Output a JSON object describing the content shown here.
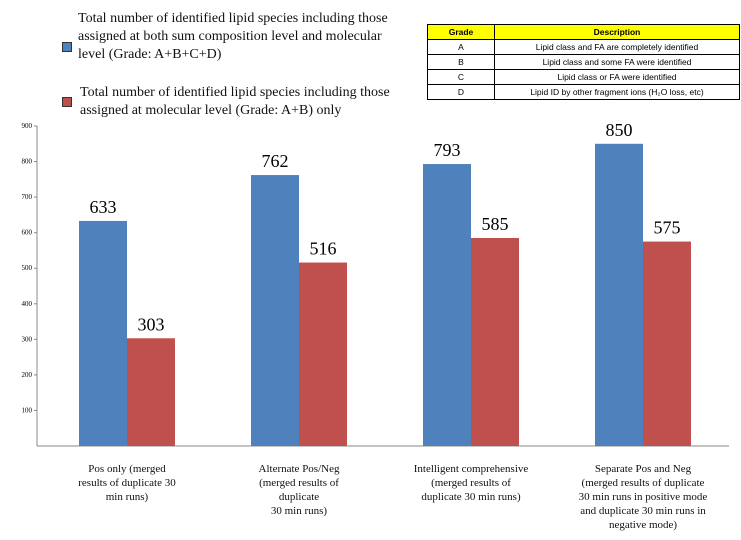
{
  "chart_data": {
    "type": "bar",
    "categories": [
      "Pos only (merged\nresults of duplicate 30\nmin runs)",
      "Alternate Pos/Neg\n(merged results of\nduplicate\n30 min runs)",
      "Intelligent comprehensive\n(merged results of\nduplicate 30 min runs)",
      "Separate Pos and Neg\n(merged results of duplicate\n30 min runs in positive mode\nand duplicate 30 min runs in\nnegative mode)"
    ],
    "series": [
      {
        "name": "Total number of identified lipid species including those assigned at both sum composition level and molecular level (Grade: A+B+C+D)",
        "color": "#4f81bd",
        "values": [
          633,
          762,
          793,
          850
        ]
      },
      {
        "name": "Total number of identified lipid species including those assigned at molecular level  (Grade: A+B) only",
        "color": "#c0504d",
        "values": [
          303,
          516,
          585,
          575
        ]
      }
    ],
    "ylim": [
      0,
      900
    ],
    "yticks": [
      100,
      200,
      300,
      400,
      500,
      600,
      700,
      800,
      900
    ],
    "grid": false
  },
  "grade_table": {
    "header": [
      "Grade",
      "Description"
    ],
    "rows": [
      [
        "A",
        "Lipid class and FA are completely identified"
      ],
      [
        "B",
        "Lipid class and some FA were identified"
      ],
      [
        "C",
        "Lipid class or FA were identified"
      ],
      [
        "D",
        "Lipid ID by other fragment ions (H₂O loss, etc)"
      ]
    ]
  }
}
